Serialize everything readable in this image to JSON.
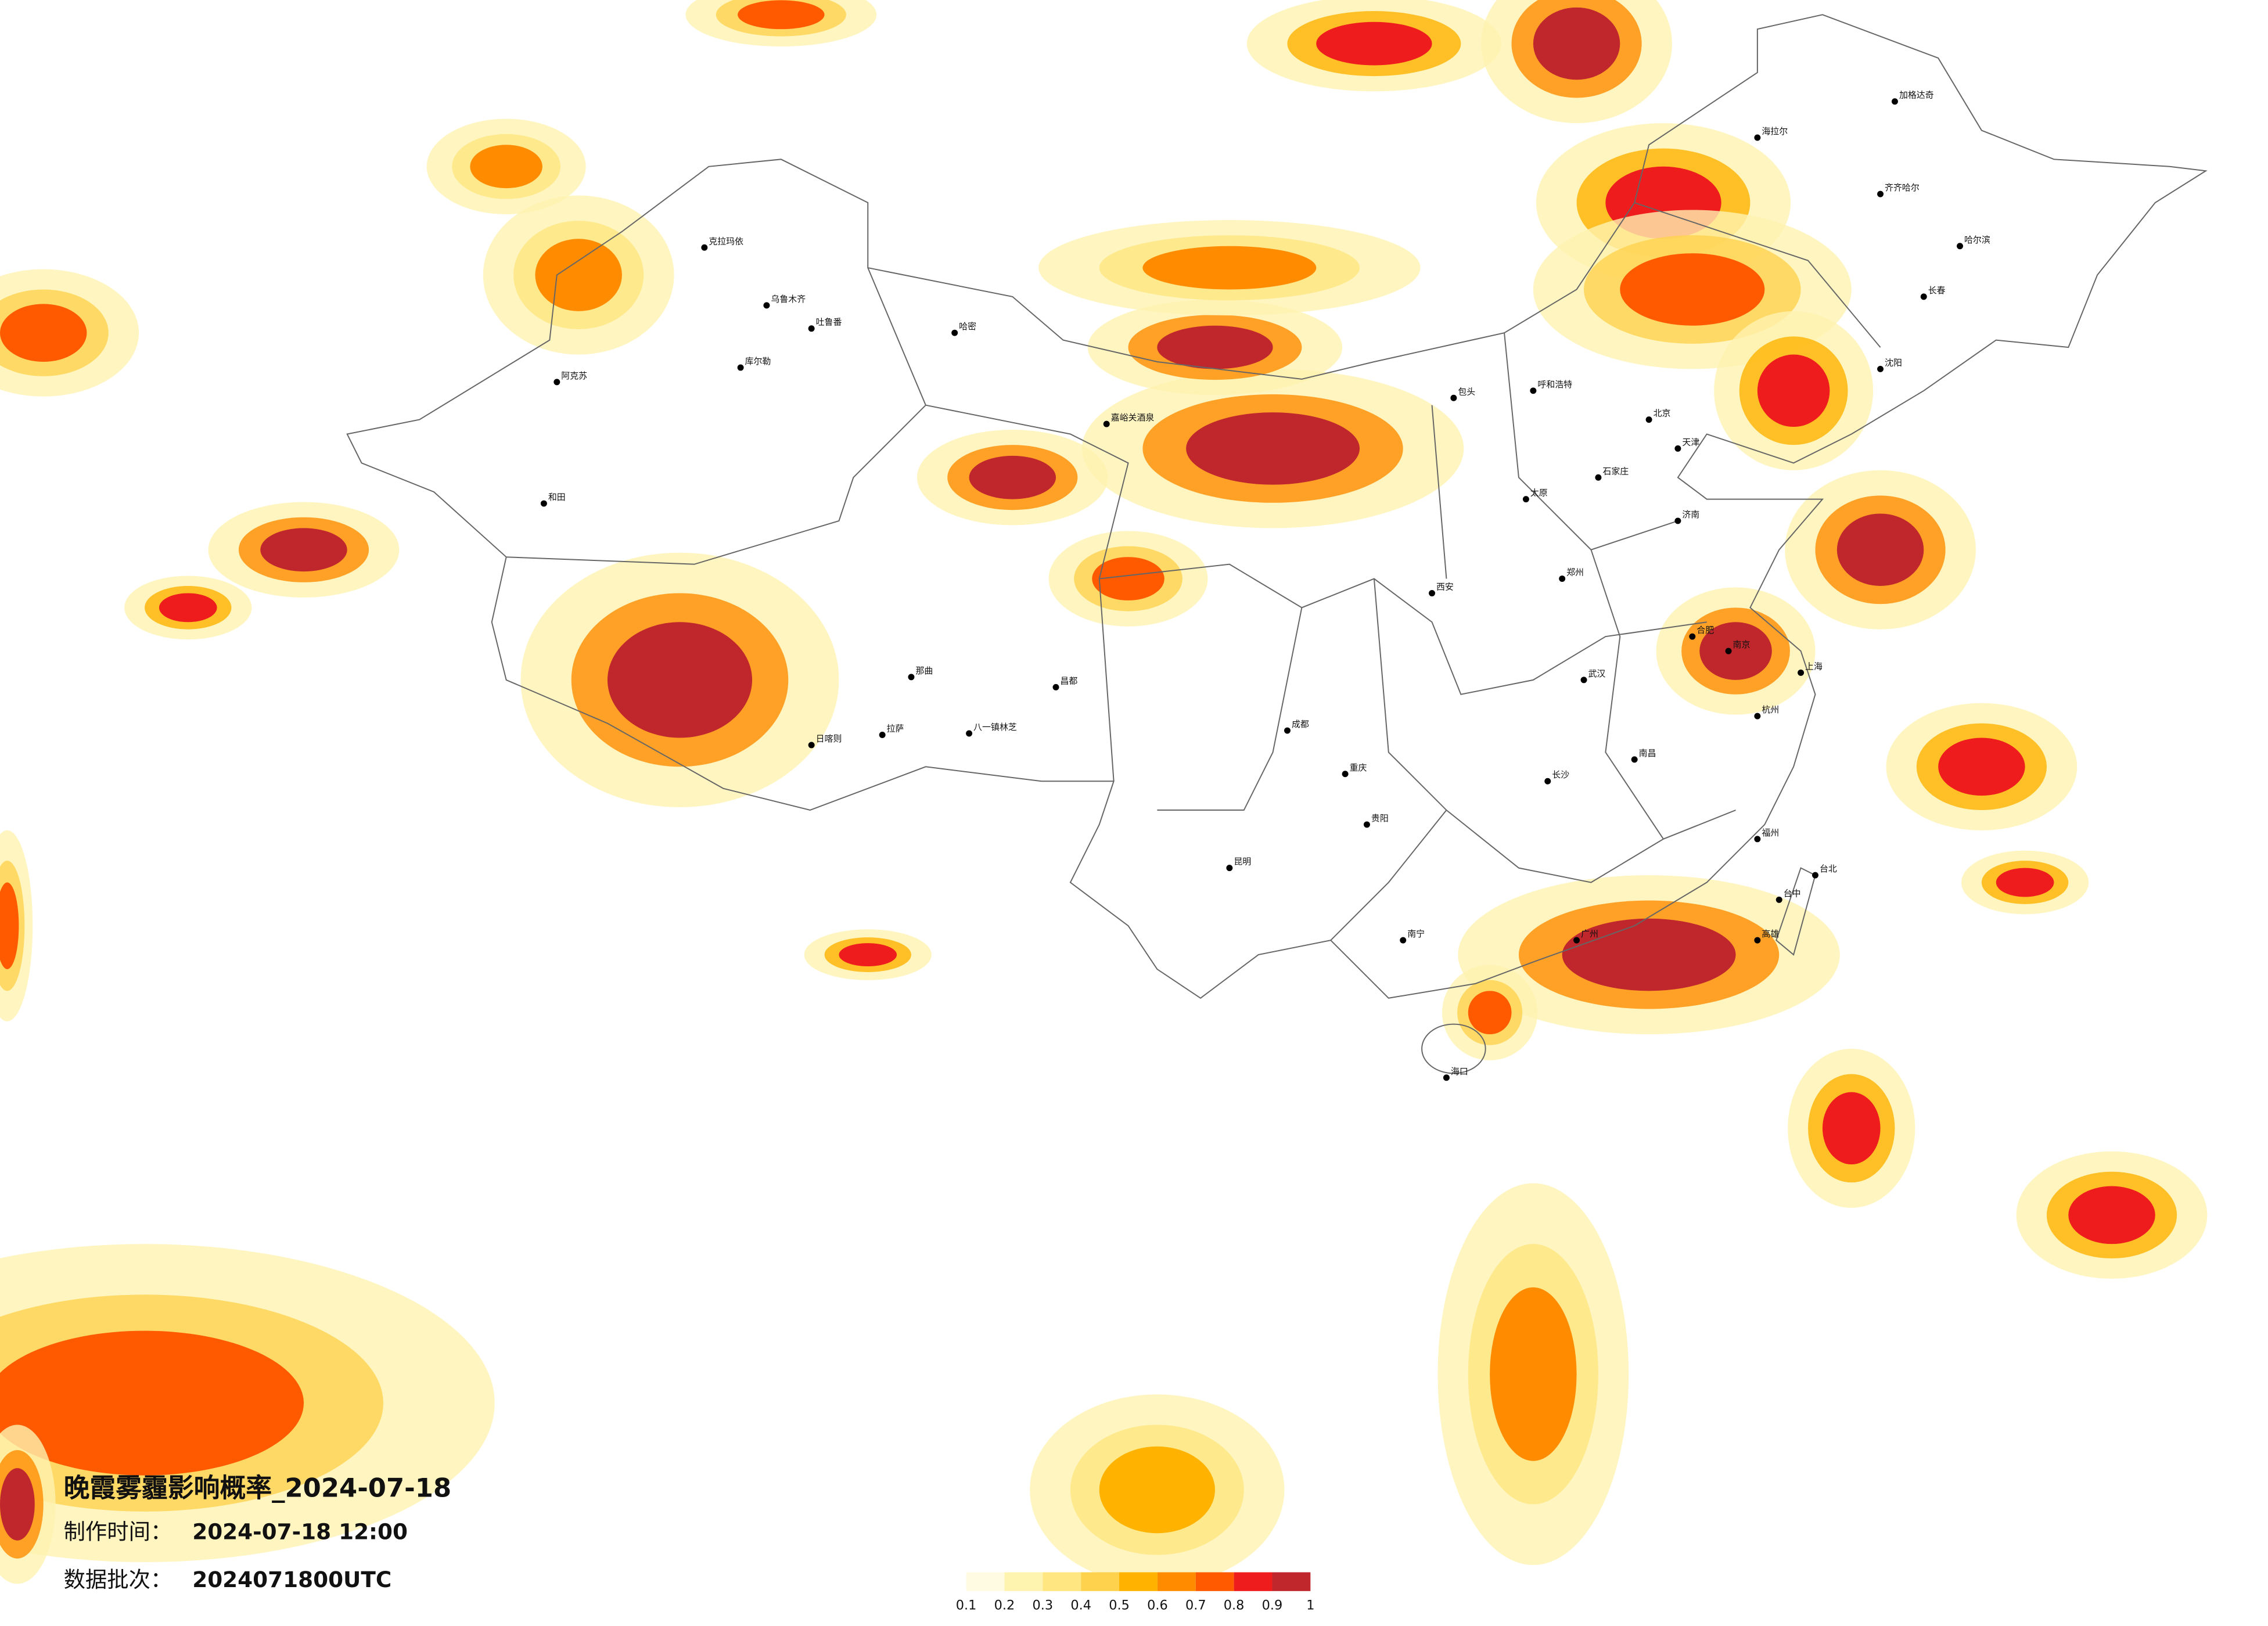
{
  "title": "晚霞雾霾影响概率_2024-07-18",
  "production_time": {
    "label": "制作时间：",
    "value": "2024-07-18 12:00"
  },
  "data_batch": {
    "label": "数据批次：",
    "value": "2024071800UTC"
  },
  "legend": {
    "colors": [
      "#fffbe3",
      "#fff3b0",
      "#ffe680",
      "#ffd24d",
      "#ffb300",
      "#ff8c00",
      "#ff5a00",
      "#ee1c1c",
      "#c0272d"
    ],
    "ticks": [
      0.1,
      0.2,
      0.3,
      0.4,
      0.5,
      0.6,
      0.7,
      0.8,
      0.9,
      1
    ]
  },
  "cities": [
    "乌鲁木齐",
    "克拉玛依",
    "吐鲁番",
    "哈密",
    "库尔勒",
    "阿克苏",
    "和田",
    "拉萨",
    "日喀则",
    "那曲",
    "昌都",
    "八一镇林芝",
    "嘉峪关酒泉",
    "呼和浩特",
    "包头",
    "北京",
    "天津",
    "石家庄",
    "太原",
    "济南",
    "郑州",
    "西安",
    "武汉",
    "长沙",
    "南昌",
    "合肥",
    "南京",
    "上海",
    "杭州",
    "福州",
    "广州",
    "南宁",
    "海口",
    "贵阳",
    "昆明",
    "成都",
    "重庆",
    "哈尔滨",
    "长春",
    "沈阳",
    "齐齐哈尔",
    "海拉尔",
    "加格达奇",
    "台北",
    "台中",
    "高雄"
  ]
}
